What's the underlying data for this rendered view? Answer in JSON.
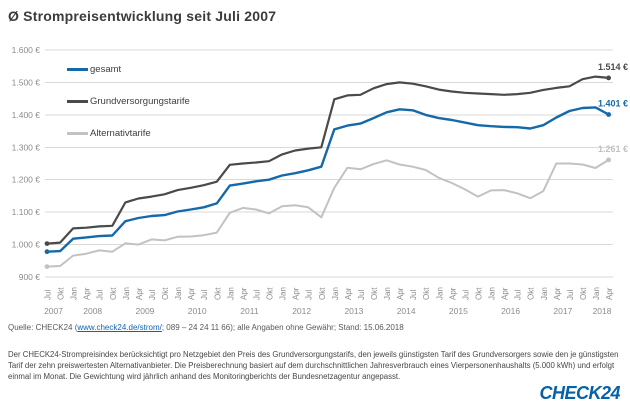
{
  "header": {
    "title": "Ø Strompreisentwicklung seit Juli 2007"
  },
  "chart_data": {
    "type": "line",
    "title": "Ø Strompreisentwicklung seit Juli 2007",
    "y_unit": "€",
    "ylim": [
      900,
      1600
    ],
    "grid": true,
    "legend_position": "top-left-inside",
    "y_ticks": [
      {
        "value": 900,
        "label": "900 €"
      },
      {
        "value": 1000,
        "label": "1.000 €"
      },
      {
        "value": 1100,
        "label": "1.100 €"
      },
      {
        "value": 1200,
        "label": "1.200 €"
      },
      {
        "value": 1300,
        "label": "1.300 €"
      },
      {
        "value": 1400,
        "label": "1.400 €"
      },
      {
        "value": 1500,
        "label": "1.500 €"
      },
      {
        "value": 1600,
        "label": "1.600 €"
      }
    ],
    "x_tick_labels": [
      "Jul",
      "Okt",
      "Jan",
      "Apr",
      "Jul",
      "Okt",
      "Jan",
      "Apr",
      "Jul",
      "Okt",
      "Jan",
      "Apr",
      "Jul",
      "Okt",
      "Jan",
      "Apr",
      "Jul",
      "Okt",
      "Jan",
      "Apr",
      "Jul",
      "Okt",
      "Jan",
      "Apr",
      "Jul",
      "Okt",
      "Jan",
      "Apr",
      "Jul",
      "Okt",
      "Jan",
      "Apr",
      "Jul",
      "Okt",
      "Jan",
      "Apr",
      "Jul",
      "Okt",
      "Jan",
      "Apr",
      "Jul",
      "Okt",
      "Jan",
      "Apr"
    ],
    "year_groups": [
      {
        "label": "2007",
        "ticks": 2
      },
      {
        "label": "2008",
        "ticks": 4
      },
      {
        "label": "2009",
        "ticks": 4
      },
      {
        "label": "2010",
        "ticks": 4
      },
      {
        "label": "2011",
        "ticks": 4
      },
      {
        "label": "2012",
        "ticks": 4
      },
      {
        "label": "2013",
        "ticks": 4
      },
      {
        "label": "2014",
        "ticks": 4
      },
      {
        "label": "2015",
        "ticks": 4
      },
      {
        "label": "2016",
        "ticks": 4
      },
      {
        "label": "2017",
        "ticks": 4
      },
      {
        "label": "2018",
        "ticks": 2
      }
    ],
    "series": [
      {
        "name": "gesamt",
        "color": "#1569a8",
        "width": 2.4,
        "end_label": "1.401 €",
        "values": [
          978,
          980,
          1018,
          1022,
          1026,
          1028,
          1072,
          1082,
          1088,
          1091,
          1102,
          1108,
          1115,
          1127,
          1182,
          1188,
          1195,
          1200,
          1213,
          1220,
          1229,
          1240,
          1355,
          1367,
          1373,
          1390,
          1408,
          1417,
          1414,
          1400,
          1390,
          1384,
          1376,
          1368,
          1365,
          1363,
          1362,
          1358,
          1368,
          1392,
          1412,
          1421,
          1423,
          1401
        ]
      },
      {
        "name": "Grundversorgungstarife",
        "color": "#4a4a4a",
        "width": 2.2,
        "end_label": "1.514 €",
        "values": [
          1003,
          1006,
          1050,
          1052,
          1056,
          1058,
          1130,
          1142,
          1148,
          1155,
          1168,
          1175,
          1183,
          1194,
          1246,
          1250,
          1253,
          1257,
          1278,
          1290,
          1296,
          1300,
          1448,
          1460,
          1462,
          1482,
          1495,
          1500,
          1496,
          1488,
          1478,
          1472,
          1468,
          1466,
          1464,
          1462,
          1464,
          1468,
          1477,
          1483,
          1488,
          1510,
          1518,
          1514
        ]
      },
      {
        "name": "Alternativtarife",
        "color": "#c2c2c2",
        "width": 2,
        "end_label": "1.261 €",
        "values": [
          932,
          934,
          966,
          972,
          982,
          978,
          1004,
          1000,
          1016,
          1013,
          1024,
          1025,
          1029,
          1037,
          1098,
          1113,
          1108,
          1096,
          1118,
          1121,
          1115,
          1084,
          1175,
          1237,
          1232,
          1248,
          1260,
          1247,
          1240,
          1230,
          1206,
          1190,
          1170,
          1148,
          1167,
          1168,
          1158,
          1143,
          1165,
          1250,
          1250,
          1247,
          1236,
          1261
        ]
      }
    ]
  },
  "source": {
    "prefix": "Quelle: CHECK24 (",
    "link": "www.check24.de/strom/",
    "suffix": "; 089 – 24 24 11 66); alle Angaben ohne Gewähr; Stand: 15.06.2018"
  },
  "footer": {
    "text": "Der CHECK24-Strompreisindex berücksichtigt pro Netzgebiet den Preis des Grundversorgungstarifs, den jeweils günstigsten Tarif des Grundversorgers sowie den je günstigsten Tarif der zehn preiswertesten Alternativanbieter. Die Preisberechnung basiert auf dem durchschnittlichen Jahresverbrauch eines Vierpersonenhaushalts (5.000 kWh) und erfolgt einmal im Monat. Die Gewichtung wird jährlich anhand des Monitoringberichts der Bundesnetzagentur angepasst."
  },
  "logo": {
    "text": "CHECK24",
    "color": "#0561a8"
  }
}
